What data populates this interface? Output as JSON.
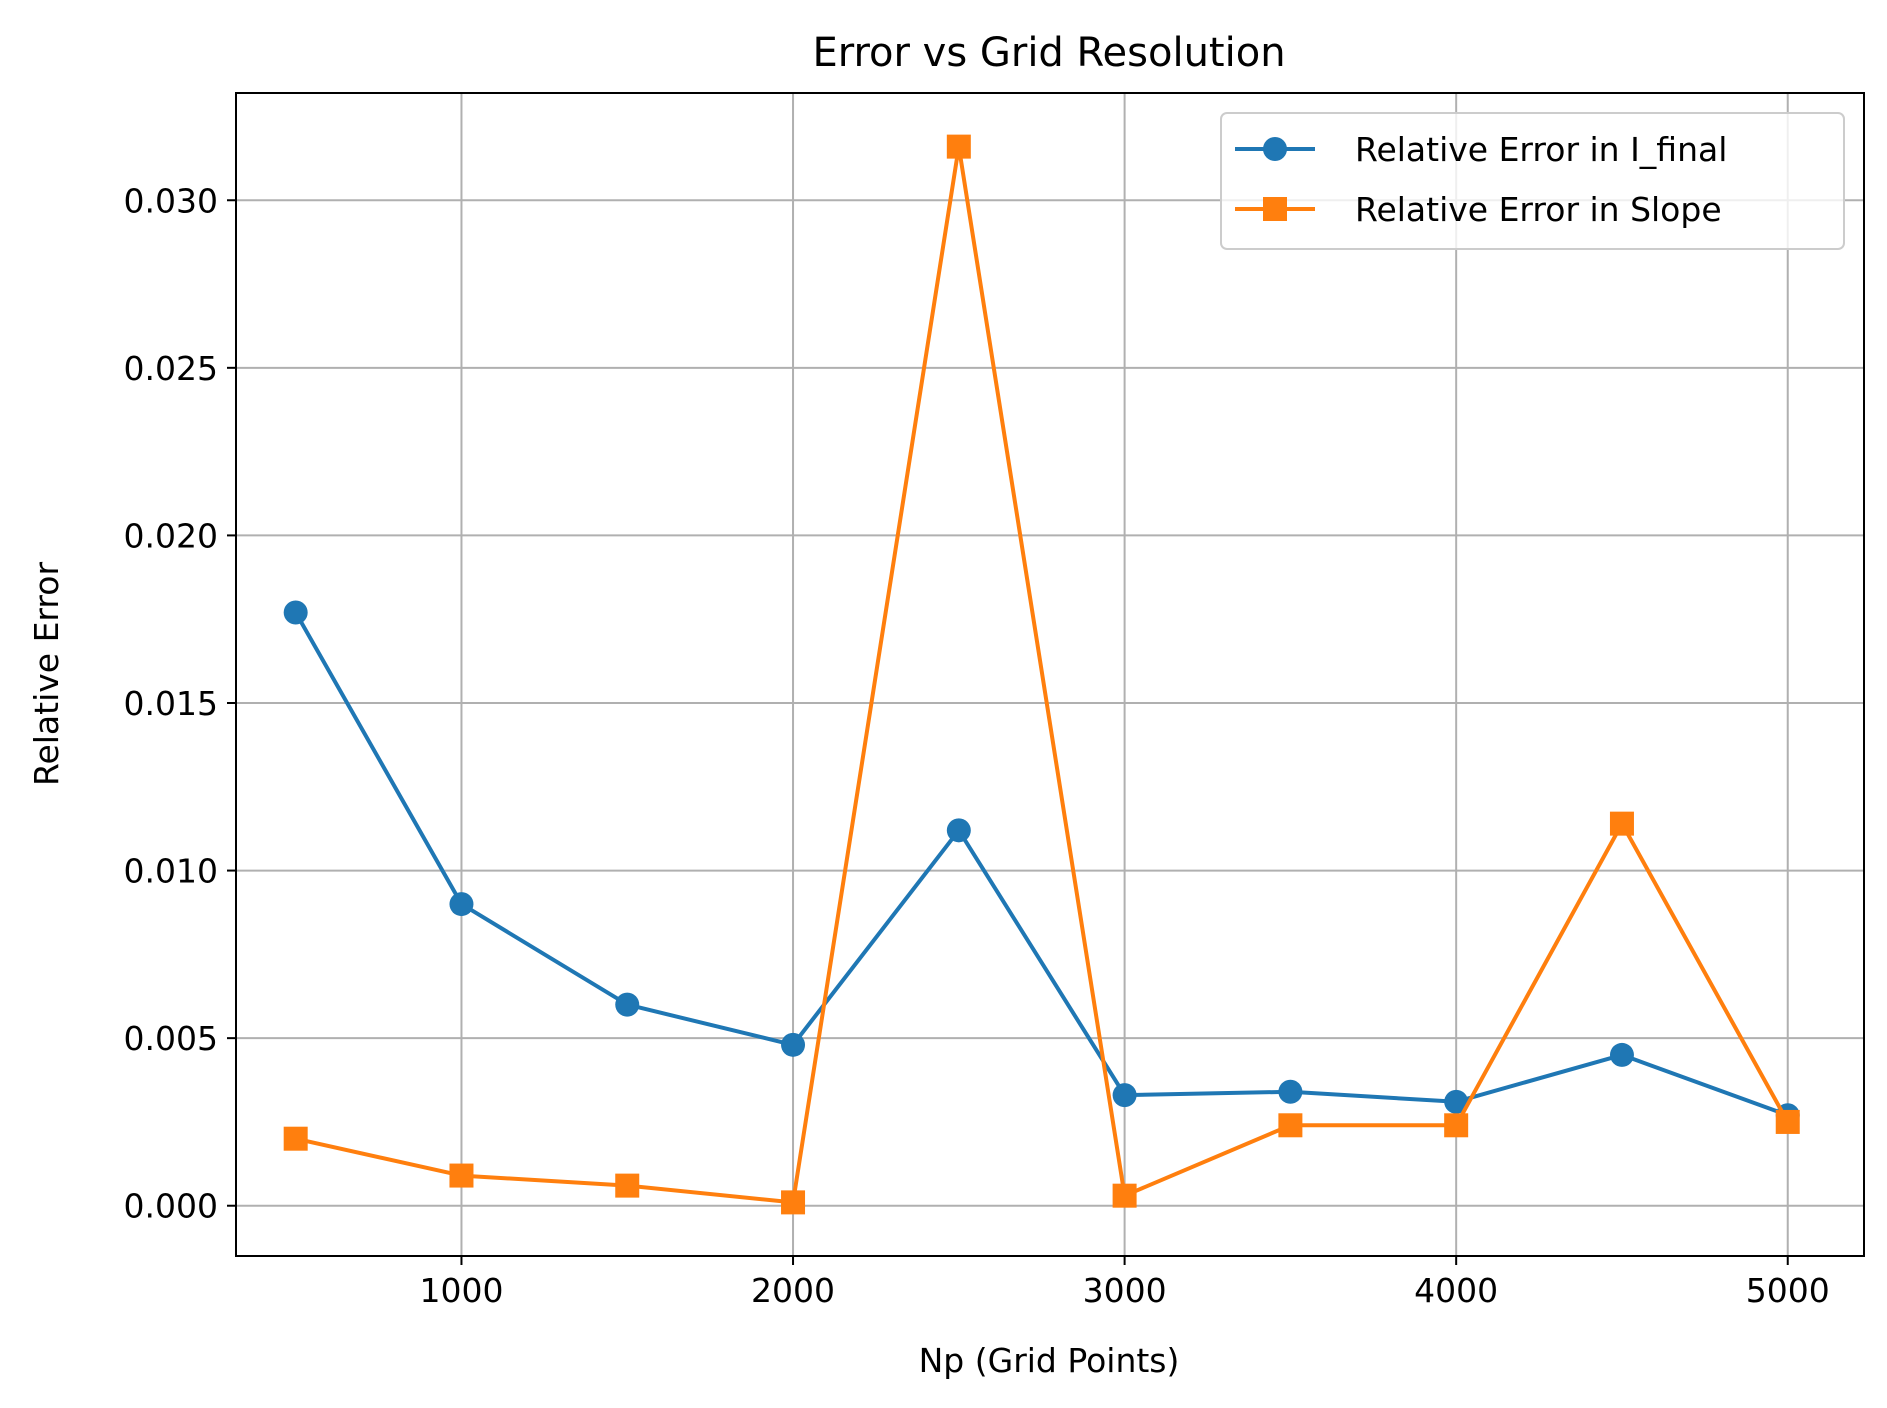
{
  "chart_data": {
    "type": "line",
    "title": "Error vs Grid Resolution",
    "xlabel": "Np (Grid Points)",
    "ylabel": "Relative Error",
    "xlim": [
      320,
      5230
    ],
    "ylim": [
      -0.0015,
      0.0332
    ],
    "x": [
      500,
      1000,
      1500,
      2000,
      2500,
      3000,
      3500,
      4000,
      4500,
      5000
    ],
    "xticks": [
      1000,
      2000,
      3000,
      4000,
      5000
    ],
    "xtick_labels": [
      "1000",
      "2000",
      "3000",
      "4000",
      "5000"
    ],
    "yticks": [
      0.0,
      0.005,
      0.01,
      0.015,
      0.02,
      0.025,
      0.03
    ],
    "ytick_labels": [
      "0.000",
      "0.005",
      "0.010",
      "0.015",
      "0.020",
      "0.025",
      "0.030"
    ],
    "grid": true,
    "legend_position": "top-right",
    "series": [
      {
        "name": "Relative Error in I_final",
        "color": "#1f77b4",
        "marker": "circle",
        "values": [
          0.0177,
          0.009,
          0.006,
          0.0048,
          0.0112,
          0.0033,
          0.0034,
          0.0031,
          0.0045,
          0.0027
        ]
      },
      {
        "name": "Relative Error in Slope",
        "color": "#ff7f0e",
        "marker": "square",
        "values": [
          0.002,
          0.0009,
          0.0006,
          0.0001,
          0.0316,
          0.0003,
          0.0024,
          0.0024,
          0.0114,
          0.0025
        ]
      }
    ]
  }
}
